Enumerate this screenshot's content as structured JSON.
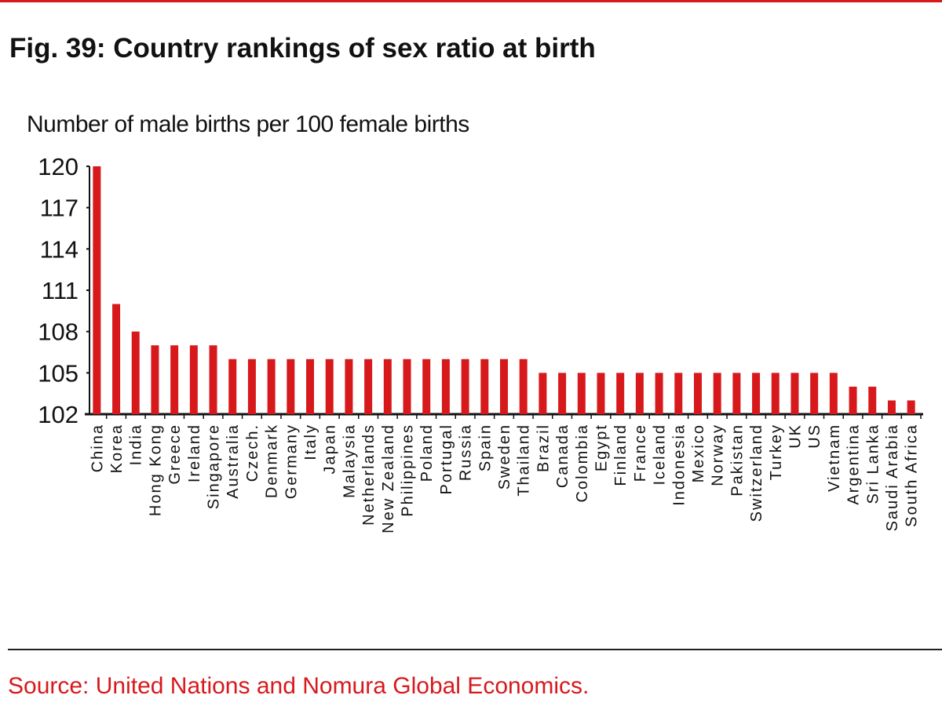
{
  "header": {
    "title": "Fig. 39: Country rankings of sex ratio at birth"
  },
  "footer": {
    "source": "Source: United Nations and Nomura Global Economics."
  },
  "chart_data": {
    "type": "bar",
    "title": "Fig. 39: Country rankings of sex ratio at birth",
    "ylabel": "Number of male births per 100 female births",
    "xlabel": "",
    "ylim": [
      102,
      120
    ],
    "yticks": [
      102,
      105,
      108,
      111,
      114,
      117,
      120
    ],
    "grid": false,
    "bar_color": "#d7191c",
    "categories": [
      "China",
      "Korea",
      "India",
      "Hong Kong",
      "Greece",
      "Ireland",
      "Singapore",
      "Australia",
      "Czech.",
      "Denmark",
      "Germany",
      "Italy",
      "Japan",
      "Malaysia",
      "Netherlands",
      "New Zealand",
      "Philippines",
      "Poland",
      "Portugal",
      "Russia",
      "Spain",
      "Sweden",
      "Thailand",
      "Brazil",
      "Canada",
      "Colombia",
      "Egypt",
      "Finland",
      "France",
      "Iceland",
      "Indonesia",
      "Mexico",
      "Norway",
      "Pakistan",
      "Switzerland",
      "Turkey",
      "UK",
      "US",
      "Vietnam",
      "Argentina",
      "Sri Lanka",
      "Saudi Arabia",
      "South Africa"
    ],
    "values": [
      120,
      110,
      108,
      107,
      107,
      107,
      107,
      106,
      106,
      106,
      106,
      106,
      106,
      106,
      106,
      106,
      106,
      106,
      106,
      106,
      106,
      106,
      106,
      105,
      105,
      105,
      105,
      105,
      105,
      105,
      105,
      105,
      105,
      105,
      105,
      105,
      105,
      105,
      105,
      104,
      104,
      103,
      103
    ]
  }
}
